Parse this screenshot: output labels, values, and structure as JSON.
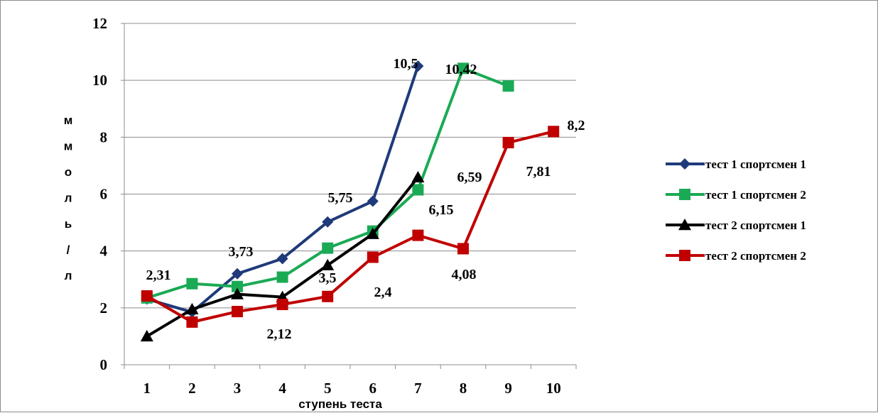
{
  "chart_data": {
    "type": "line",
    "xlabel": "ступень теста",
    "ylabel": "ммоль/л",
    "ylabel_chars": [
      "м",
      "м",
      "о",
      "л",
      "ь",
      "/",
      "л"
    ],
    "x": [
      1,
      2,
      3,
      4,
      5,
      6,
      7,
      8,
      9,
      10
    ],
    "ylim": [
      0,
      12
    ],
    "yticks": [
      0,
      2,
      4,
      6,
      8,
      10,
      12
    ],
    "grid": true,
    "legend_position": "right",
    "series": [
      {
        "name": "тест 1 спортсмен 1",
        "color": "#1f3a7a",
        "marker": "diamond",
        "values": [
          2.31,
          1.85,
          3.2,
          3.73,
          5.02,
          5.75,
          10.5,
          null,
          null,
          null
        ]
      },
      {
        "name": "тест 1 спортсмен 2",
        "color": "#1aaa55",
        "marker": "square",
        "values": [
          2.35,
          2.85,
          2.75,
          3.08,
          4.1,
          4.7,
          6.15,
          10.42,
          9.8,
          null
        ]
      },
      {
        "name": "тест 2 спортсмен 1",
        "color": "#000000",
        "marker": "triangle",
        "values": [
          1.0,
          1.95,
          2.48,
          2.38,
          3.5,
          4.6,
          6.59,
          null,
          null,
          null
        ]
      },
      {
        "name": "тест 2 спортсмен 2",
        "color": "#c00000",
        "marker": "square",
        "values": [
          2.42,
          1.5,
          1.87,
          2.12,
          2.4,
          3.78,
          4.55,
          4.08,
          7.81,
          8.2
        ]
      }
    ],
    "data_labels": [
      {
        "text": "2,31"
      },
      {
        "text": "3,73"
      },
      {
        "text": "5,75"
      },
      {
        "text": "10,5"
      },
      {
        "text": "10,42"
      },
      {
        "text": "6,59"
      },
      {
        "text": "6,15"
      },
      {
        "text": "3,5"
      },
      {
        "text": "2,4"
      },
      {
        "text": "2,12"
      },
      {
        "text": "4,08"
      },
      {
        "text": "7,81"
      },
      {
        "text": "8,2"
      }
    ]
  }
}
